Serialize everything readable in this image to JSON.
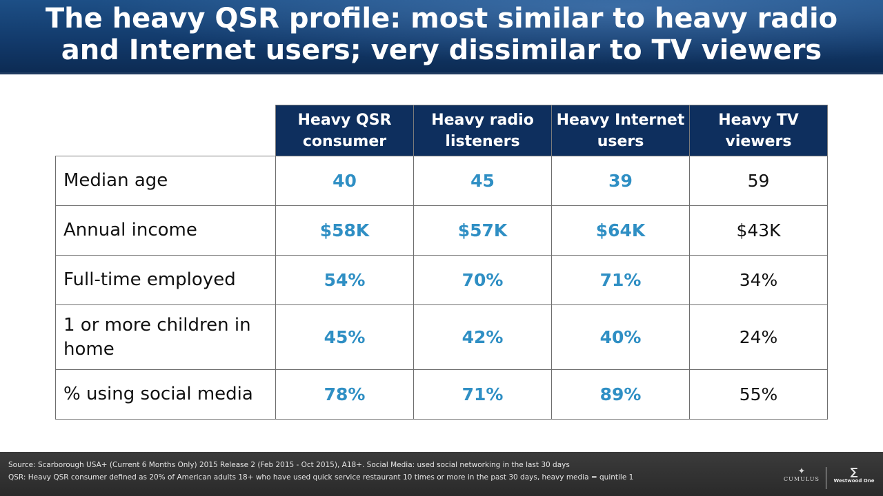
{
  "slide": {
    "title_line1": "The heavy QSR profile: most similar to heavy radio",
    "title_line2": "and Internet users; very dissimilar to TV viewers"
  },
  "table": {
    "columns": [
      "Heavy QSR consumer",
      "Heavy radio listeners",
      "Heavy Internet users",
      "Heavy TV viewers"
    ],
    "rows": [
      {
        "label": "Median age",
        "values": [
          "40",
          "45",
          "39",
          "59"
        ]
      },
      {
        "label": "Annual income",
        "values": [
          "$58K",
          "$57K",
          "$64K",
          "$43K"
        ]
      },
      {
        "label": "Full-time employed",
        "values": [
          "54%",
          "70%",
          "71%",
          "34%"
        ]
      },
      {
        "label": "1 or more children in home",
        "values": [
          "45%",
          "42%",
          "40%",
          "24%"
        ]
      },
      {
        "label": "% using social media",
        "values": [
          "78%",
          "71%",
          "89%",
          "55%"
        ]
      }
    ]
  },
  "footer": {
    "source_note": "Source: Scarborough USA+ (Current 6 Months Only) 2015 Release 2 (Feb 2015 - Oct 2015), A18+. Social Media: used social networking in the last 30 days",
    "qsr_note": "QSR: Heavy QSR consumer defined as 20% of American adults 18+ who have used quick service restaurant 10 times or more in the past 30 days, heavy media = quintile 1"
  },
  "logos": {
    "cumulus": "CUMULUS",
    "westwood": "Westwood One"
  },
  "colors": {
    "header_fill": "#0e2f5e",
    "highlight_text": "#2f8fc4",
    "title_bar": "#123a6b",
    "footer_bar": "#333333"
  }
}
